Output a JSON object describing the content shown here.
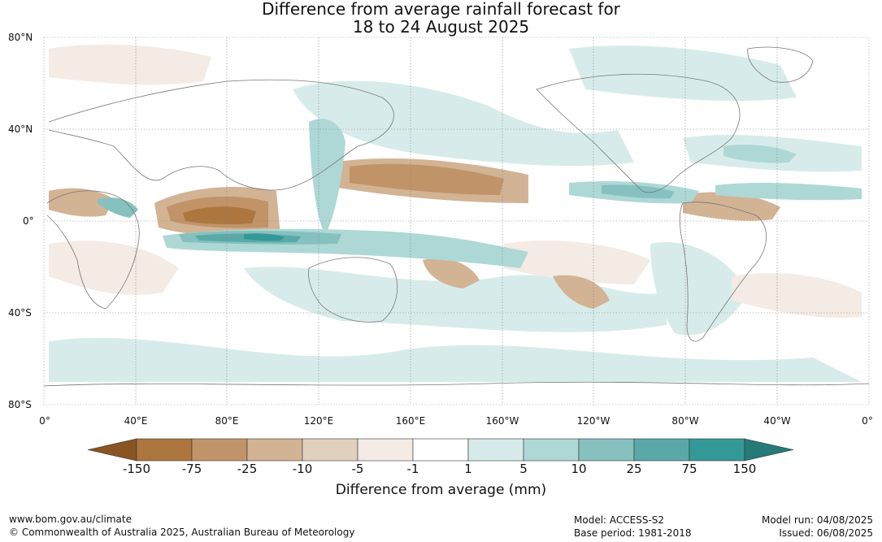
{
  "title": {
    "line1": "Difference from average rainfall forecast for",
    "line2": "18 to 24 August 2025"
  },
  "map": {
    "lat_labels": [
      "80°N",
      "40°N",
      "0°",
      "40°S",
      "80°S"
    ],
    "lon_labels": [
      "0°",
      "40°E",
      "80°E",
      "120°E",
      "160°E",
      "160°W",
      "120°W",
      "80°W",
      "40°W",
      "0°"
    ]
  },
  "colorbar": {
    "title": "Difference from average (mm)",
    "ticks": [
      "-150",
      "-75",
      "-25",
      "-10",
      "-5",
      "-1",
      "1",
      "5",
      "10",
      "25",
      "75",
      "150"
    ],
    "colors": [
      "#8a5522",
      "#ad763e",
      "#c19368",
      "#d2b394",
      "#e2d0bf",
      "#f3ebe4",
      "#ffffff",
      "#d7ecea",
      "#add8d6",
      "#86c1bf",
      "#5aa9a8",
      "#339997",
      "#267a78"
    ]
  },
  "footer": {
    "website": "www.bom.gov.au/climate",
    "copyright": "© Commonwealth of Australia 2025, Australian Bureau of Meteorology",
    "model": "Model: ACCESS-S2",
    "base_period": "Base period: 1981-2018",
    "model_run": "Model run: 04/08/2025",
    "issued": "Issued: 06/08/2025"
  }
}
